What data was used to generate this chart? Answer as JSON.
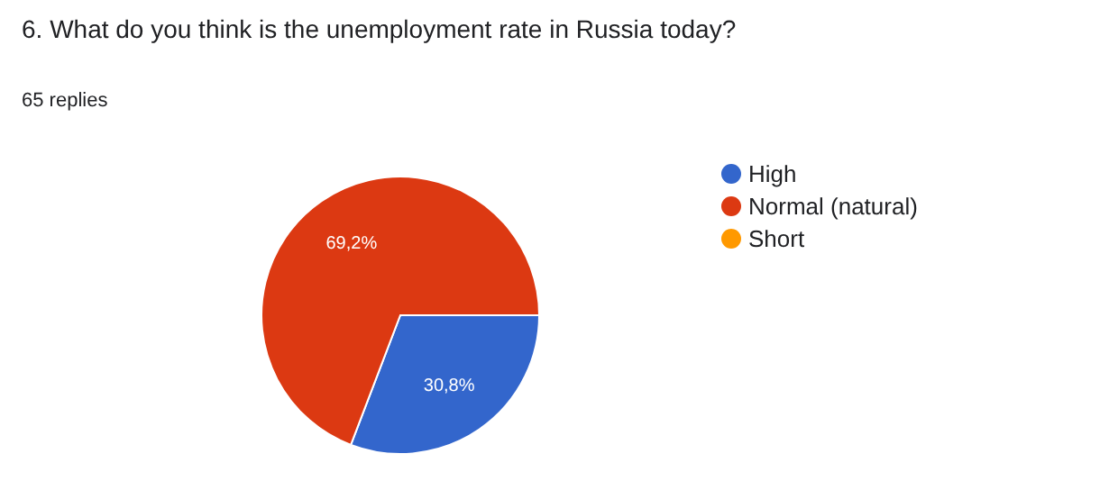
{
  "chart_data": {
    "type": "pie",
    "title": "6. What do you think is the unemployment rate in Russia today?",
    "subtitle": "65 replies",
    "categories": [
      "High",
      "Normal (natural)",
      "Short"
    ],
    "values": [
      30.8,
      69.2,
      0
    ],
    "colors": [
      "#3366cc",
      "#dc3912",
      "#ff9900"
    ],
    "value_labels": [
      "30,8%",
      "69,2%",
      null
    ],
    "legend": "right"
  }
}
